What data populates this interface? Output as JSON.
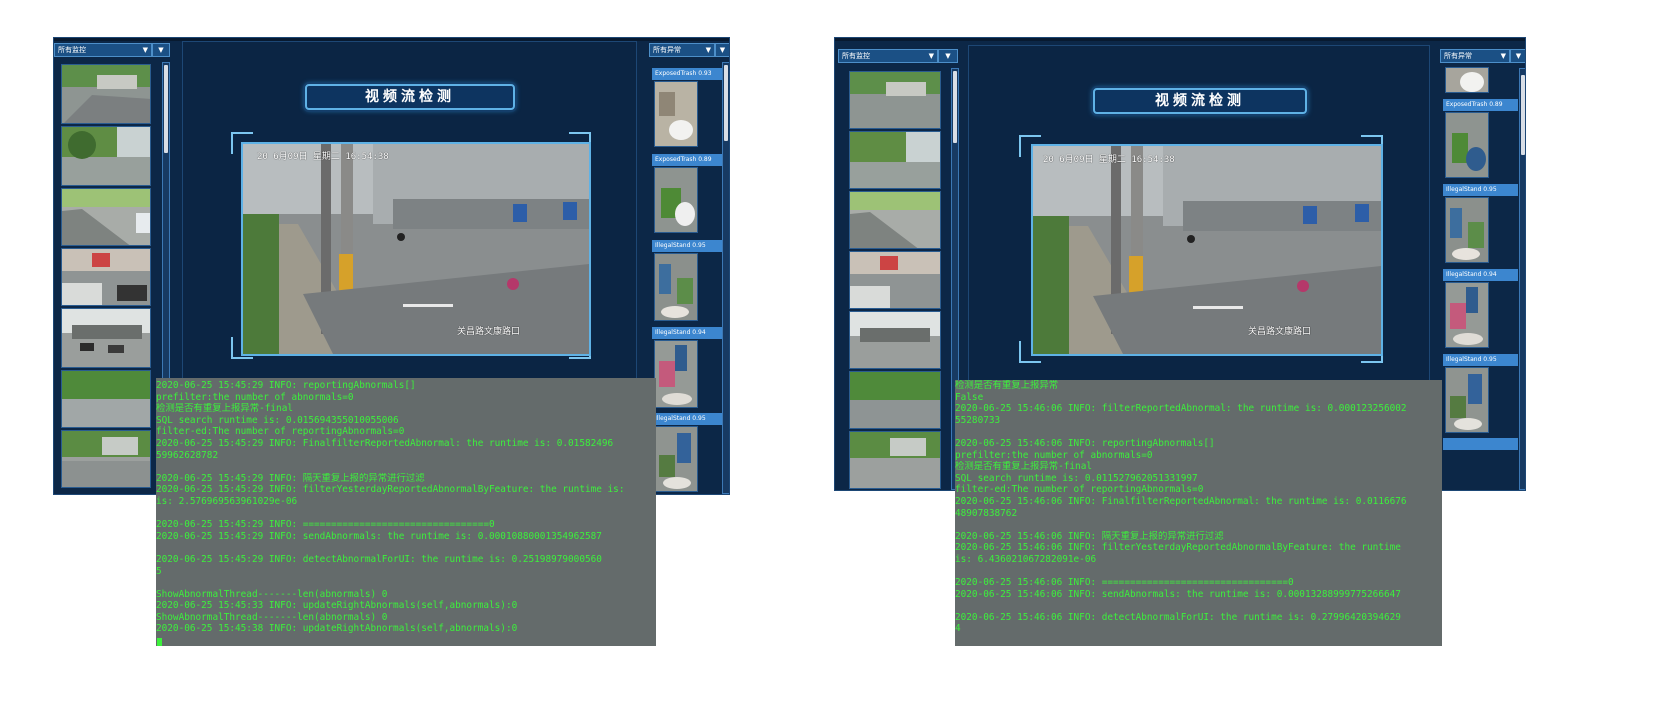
{
  "screens": [
    {
      "monitor_dropdown": "所有监控",
      "alert_dropdown": "所有异常",
      "title": "视频流检测",
      "video": {
        "timestamp": "20  6月09日  星期二 16:54:38",
        "location": "关昌路文康路口"
      },
      "alerts": [
        {
          "label": "ExposedTrash 0.93",
          "icon": "trash-icon"
        },
        {
          "label": "ExposedTrash 0.89",
          "icon": "trash-icon"
        },
        {
          "label": "IllegalStand 0.95",
          "icon": "stall-icon"
        },
        {
          "label": "IllegalStand 0.94",
          "icon": "stall-icon"
        },
        {
          "label": "IllegalStand 0.95",
          "icon": "stall-icon"
        }
      ],
      "terminal": [
        "2020-06-25 15:45:29 INFO: reportingAbnormals[]",
        "prefilter:the number of abnormals=0",
        "检测是否有重复上报异常-final",
        "SQL search runtime is: 0.015694355010055006",
        "filter-ed:The number of reportingAbnormals=0",
        "2020-06-25 15:45:29 INFO: FinalfilterReportedAbnormal: the runtime is: 0.01582496",
        "59962628782",
        "",
        "2020-06-25 15:45:29 INFO: 隔天重复上报的异常进行过滤",
        "2020-06-25 15:45:29 INFO: filterYesterdayReportedAbnormalByFeature: the runtime is:",
        "is: 2.576969563961029e-06",
        "",
        "2020-06-25 15:45:29 INFO: =================================0",
        "2020-06-25 15:45:29 INFO: sendAbnormals: the runtime is: 0.00010880001354962587",
        "",
        "2020-06-25 15:45:29 INFO: detectAbnormalForUI: the runtime is: 0.25198979000560",
        "5",
        "",
        "ShowAbnormalThread-------len(abnormals) 0",
        "2020-06-25 15:45:33 INFO: updateRightAbnormals(self,abnormals):0",
        "ShowAbnormalThread-------len(abnormals) 0",
        "2020-06-25 15:45:38 INFO: updateRightAbnormals(self,abnormals):0"
      ]
    },
    {
      "monitor_dropdown": "所有监控",
      "alert_dropdown": "所有异常",
      "title": "视频流检测",
      "video": {
        "timestamp": "20  6月09日  星期二 16:54:38",
        "location": "关昌路文康路口"
      },
      "alerts": [
        {
          "label": "ExposedTrash 0.89",
          "icon": "trash-icon"
        },
        {
          "label": "IllegalStand 0.95",
          "icon": "stall-icon"
        },
        {
          "label": "IllegalStand 0.94",
          "icon": "stall-icon"
        },
        {
          "label": "IllegalStand 0.95",
          "icon": "stall-icon"
        }
      ],
      "terminal": [
        "检测是否有重复上报异常",
        "False",
        "2020-06-25 15:46:06 INFO: filterReportedAbnormal: the runtime is: 0.000123256002",
        "55280733",
        "",
        "2020-06-25 15:46:06 INFO: reportingAbnormals[]",
        "prefilter:the number of abnormals=0",
        "检测是否有重复上报异常-final",
        "SQL search runtime is: 0.011527962051331997",
        "filter-ed:The number of reportingAbnormals=0",
        "2020-06-25 15:46:06 INFO: FinalfilterReportedAbnormal: the runtime is: 0.0116676",
        "48907838762",
        "",
        "2020-06-25 15:46:06 INFO: 隔天重复上报的异常进行过滤",
        "2020-06-25 15:46:06 INFO: filterYesterdayReportedAbnormalByFeature: the runtime",
        "is: 6.436021067282091e-06",
        "",
        "2020-06-25 15:46:06 INFO: =================================0",
        "2020-06-25 15:46:06 INFO: sendAbnormals: the runtime is: 0.00013288999775266647",
        "",
        "2020-06-25 15:46:06 INFO: detectAbnormalForUI: the runtime is: 0.27996420394629",
        "4"
      ]
    }
  ]
}
